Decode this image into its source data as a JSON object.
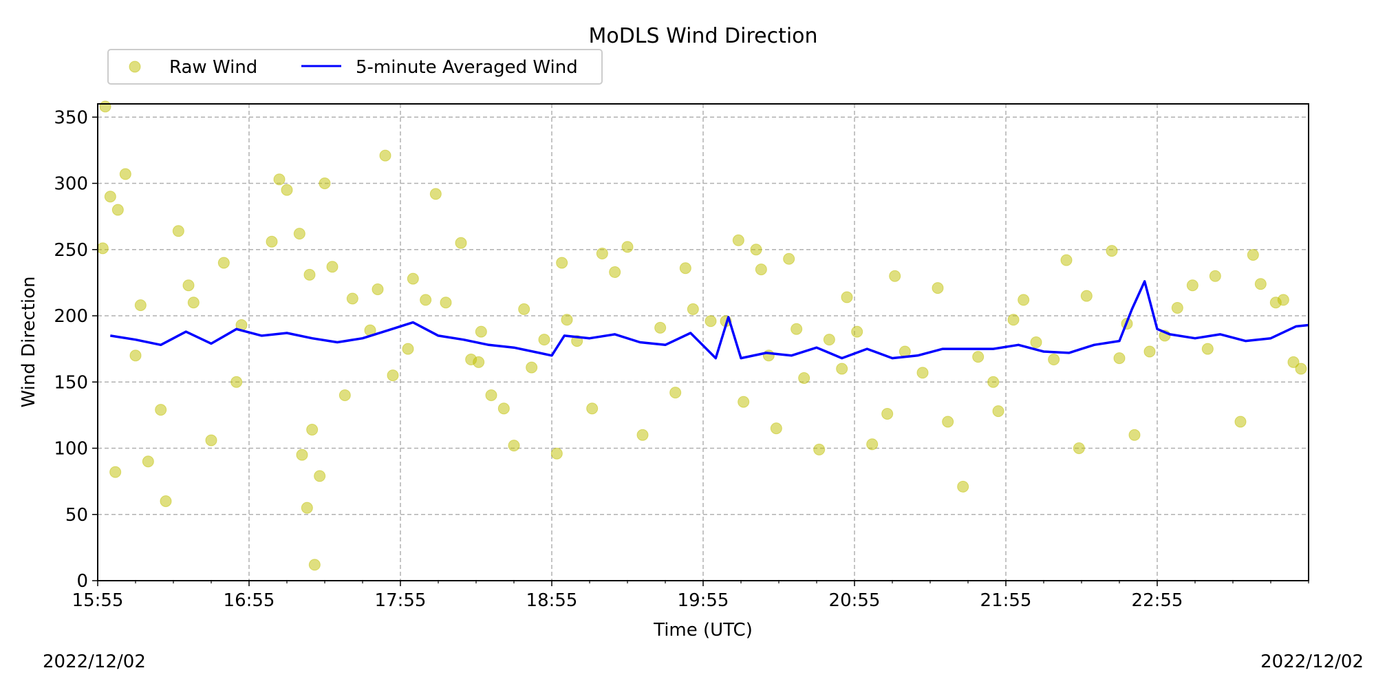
{
  "chart_data": {
    "type": "scatter",
    "title": "MoDLS Wind Direction",
    "xlabel": "Time (UTC)",
    "ylabel": "Wind Direction",
    "date_start": "2022/12/02",
    "date_end": "2022/12/02",
    "xlim": [
      "15:55",
      "23:55"
    ],
    "ylim": [
      0,
      360
    ],
    "x_major_ticks": [
      "15:55",
      "16:55",
      "17:55",
      "18:55",
      "19:55",
      "20:55",
      "21:55",
      "22:55"
    ],
    "y_ticks": [
      0,
      50,
      100,
      150,
      200,
      250,
      300,
      350
    ],
    "grid": true,
    "legend_location": "above top-left",
    "series": [
      {
        "name": "Raw Wind",
        "kind": "scatter",
        "color": "#bfbf00",
        "alpha": 0.5,
        "x": [
          "15:57",
          "16:06",
          "16:12",
          "16:15",
          "16:27",
          "16:31",
          "16:45",
          "16:52",
          "17:04",
          "17:15",
          "17:19",
          "17:20",
          "17:28",
          "17:36",
          "17:49",
          "17:52",
          "18:00",
          "18:09",
          "18:19",
          "18:27",
          "18:36",
          "18:47",
          "18:52",
          "18:57",
          "19:05",
          "19:15",
          "19:25",
          "19:38",
          "19:48",
          "19:58",
          "20:04",
          "20:18",
          "20:29",
          "20:35",
          "20:45",
          "20:52",
          "20:56",
          "21:08",
          "21:15",
          "21:28",
          "21:44",
          "21:52",
          "22:02",
          "22:14",
          "22:24",
          "22:37",
          "22:43",
          "22:52",
          "23:03",
          "23:15",
          "23:28",
          "23:36",
          "23:42",
          "23:49",
          "16:02",
          "16:20",
          "16:40",
          "17:10",
          "17:23",
          "17:43",
          "18:05",
          "18:23",
          "18:40",
          "19:01",
          "19:20",
          "19:44",
          "20:09",
          "20:24",
          "20:41",
          "21:02",
          "21:22",
          "21:38",
          "21:58",
          "22:19",
          "22:46",
          "23:09",
          "23:33",
          "15:58",
          "16:00",
          "16:03",
          "16:10",
          "16:22",
          "16:33",
          "16:50",
          "17:07",
          "17:16",
          "17:18",
          "17:21",
          "17:25",
          "17:33",
          "17:46",
          "17:58",
          "18:13",
          "18:26",
          "18:31",
          "18:44",
          "18:59",
          "19:11",
          "19:31",
          "19:51",
          "20:11",
          "20:16",
          "20:21",
          "20:32",
          "20:50",
          "21:11",
          "21:32",
          "21:50",
          "22:07",
          "22:27",
          "22:40",
          "22:58",
          "23:18",
          "23:45",
          "23:52"
        ],
        "y": [
          251,
          307,
          208,
          90,
          264,
          223,
          240,
          193,
          256,
          262,
          231,
          114,
          237,
          213,
          321,
          155,
          228,
          292,
          255,
          188,
          130,
          161,
          182,
          96,
          181,
          247,
          252,
          191,
          236,
          196,
          196,
          235,
          243,
          153,
          182,
          214,
          188,
          126,
          173,
          221,
          169,
          128,
          212,
          167,
          100,
          249,
          194,
          173,
          206,
          175,
          120,
          224,
          210,
          165,
          82,
          129,
          106,
          295,
          79,
          189,
          212,
          167,
          102,
          197,
          233,
          142,
          257,
          115,
          99,
          103,
          157,
          71,
          197,
          242,
          110,
          223,
          246,
          358,
          290,
          280,
          170,
          60,
          210,
          150,
          303,
          95,
          55,
          12,
          300,
          140,
          220,
          175,
          210,
          165,
          140,
          205,
          240,
          130,
          110,
          205,
          135,
          250,
          170,
          190,
          160,
          230,
          120,
          150,
          180,
          215,
          168,
          185,
          230,
          212,
          160
        ]
      },
      {
        "name": "5-minute Averaged Wind",
        "kind": "line",
        "color": "#0000ff",
        "x": [
          "16:00",
          "16:10",
          "16:20",
          "16:30",
          "16:40",
          "16:50",
          "17:00",
          "17:10",
          "17:20",
          "17:30",
          "17:40",
          "17:50",
          "18:00",
          "18:10",
          "18:20",
          "18:30",
          "18:40",
          "18:50",
          "18:55",
          "19:00",
          "19:10",
          "19:20",
          "19:30",
          "19:40",
          "19:50",
          "20:00",
          "20:05",
          "20:10",
          "20:20",
          "20:30",
          "20:40",
          "20:50",
          "21:00",
          "21:10",
          "21:20",
          "21:30",
          "21:40",
          "21:50",
          "22:00",
          "22:10",
          "22:20",
          "22:30",
          "22:40",
          "22:45",
          "22:50",
          "22:55",
          "23:00",
          "23:10",
          "23:20",
          "23:30",
          "23:40",
          "23:50",
          "23:55"
        ],
        "y": [
          185,
          182,
          178,
          188,
          179,
          190,
          185,
          187,
          183,
          180,
          183,
          189,
          195,
          185,
          182,
          178,
          176,
          172,
          170,
          185,
          183,
          186,
          180,
          178,
          187,
          168,
          199,
          168,
          172,
          170,
          176,
          168,
          175,
          168,
          170,
          175,
          175,
          175,
          178,
          173,
          172,
          178,
          181,
          205,
          226,
          190,
          186,
          183,
          186,
          181,
          183,
          192,
          193
        ]
      }
    ]
  }
}
